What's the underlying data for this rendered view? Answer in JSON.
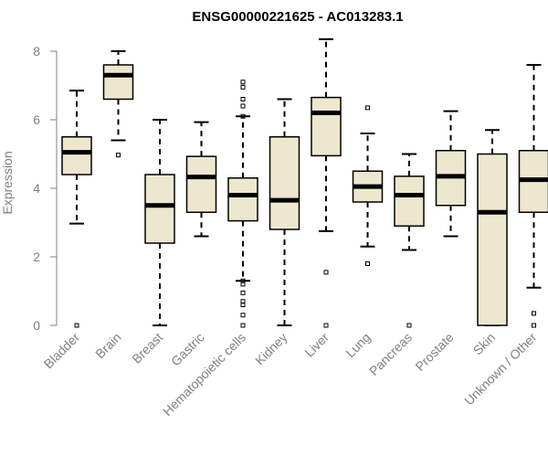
{
  "chart_data": {
    "type": "box",
    "title": "ENSG00000221625 - AC013283.1",
    "ylabel": "Expression",
    "xlabel": "",
    "ylim": [
      0,
      8.3
    ],
    "yticks": [
      0,
      2,
      4,
      6,
      8
    ],
    "grid": false,
    "box_fill": "#ede7cf",
    "box_stroke": "#000000",
    "axis_color": "#808080",
    "categories": [
      "Bladder",
      "Brain",
      "Breast",
      "Gastric",
      "Hematopoietic cells",
      "Kidney",
      "Liver",
      "Lung",
      "Pancreas",
      "Prostate",
      "Skin",
      "Unknown / Other"
    ],
    "boxes": [
      {
        "whisker_low": 2.97,
        "q1": 4.4,
        "median": 5.05,
        "q3": 5.5,
        "whisker_high": 6.85,
        "outliers": [
          0
        ]
      },
      {
        "whisker_low": 5.4,
        "q1": 6.6,
        "median": 7.3,
        "q3": 7.6,
        "whisker_high": 8.0,
        "outliers": [
          4.97
        ]
      },
      {
        "whisker_low": 0,
        "q1": 2.4,
        "median": 3.5,
        "q3": 4.4,
        "whisker_high": 6.0,
        "outliers": []
      },
      {
        "whisker_low": 2.6,
        "q1": 3.3,
        "median": 4.33,
        "q3": 4.93,
        "whisker_high": 5.93,
        "outliers": []
      },
      {
        "whisker_low": 1.3,
        "q1": 3.05,
        "median": 3.8,
        "q3": 4.3,
        "whisker_high": 6.1,
        "outliers": [
          7.1,
          6.95,
          6.6,
          6.4,
          6.1,
          1.3,
          1.2,
          0.95,
          0.7,
          0.6,
          0.3,
          0
        ]
      },
      {
        "whisker_low": 0,
        "q1": 2.8,
        "median": 3.65,
        "q3": 5.5,
        "whisker_high": 6.6,
        "outliers": []
      },
      {
        "whisker_low": 2.75,
        "q1": 4.95,
        "median": 6.2,
        "q3": 6.65,
        "whisker_high": 8.35,
        "outliers": [
          1.55,
          0
        ]
      },
      {
        "whisker_low": 2.3,
        "q1": 3.6,
        "median": 4.05,
        "q3": 4.5,
        "whisker_high": 5.6,
        "outliers": [
          6.35,
          1.8
        ]
      },
      {
        "whisker_low": 2.2,
        "q1": 2.9,
        "median": 3.8,
        "q3": 4.35,
        "whisker_high": 5.0,
        "outliers": [
          0
        ]
      },
      {
        "whisker_low": 2.6,
        "q1": 3.5,
        "median": 4.35,
        "q3": 5.1,
        "whisker_high": 6.25,
        "outliers": []
      },
      {
        "whisker_low": 0,
        "q1": 0,
        "median": 3.3,
        "q3": 5.0,
        "whisker_high": 5.7,
        "outliers": []
      },
      {
        "whisker_low": 1.1,
        "q1": 3.3,
        "median": 4.25,
        "q3": 5.1,
        "whisker_high": 7.6,
        "outliers": [
          0.35,
          0
        ]
      }
    ]
  }
}
